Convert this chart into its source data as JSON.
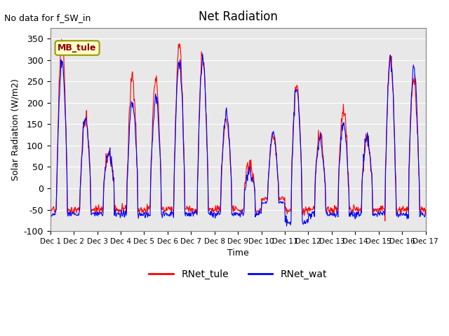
{
  "title": "Net Radiation",
  "xlabel": "Time",
  "ylabel": "Solar Radiation (W/m2)",
  "note": "No data for f_SW_in",
  "mb_label": "MB_tule",
  "ylim": [
    -100,
    375
  ],
  "yticks": [
    -100,
    -50,
    0,
    50,
    100,
    150,
    200,
    250,
    300,
    350
  ],
  "legend_labels": [
    "RNet_tule",
    "RNet_wat"
  ],
  "line_colors": [
    "red",
    "blue"
  ],
  "n_days": 16,
  "background_color": "#e8e8e8",
  "axes_bg": "#e8e8e8"
}
